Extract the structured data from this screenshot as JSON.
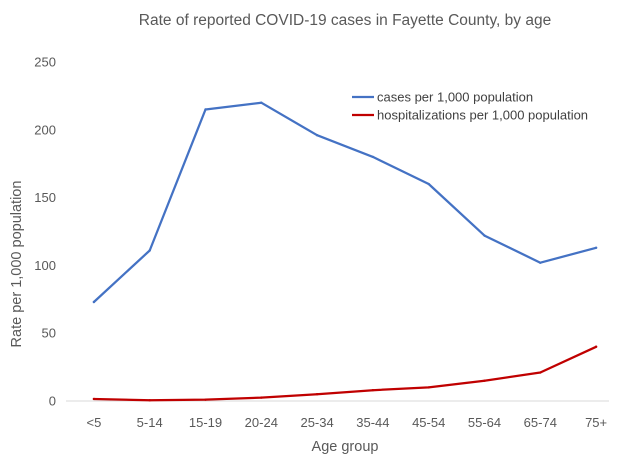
{
  "chart_data": {
    "type": "line",
    "title": "Rate of reported COVID-19 cases in Fayette County, by age",
    "xlabel": "Age group",
    "ylabel": "Rate per 1,000 population",
    "categories": [
      "<5",
      "5-14",
      "15-19",
      "20-24",
      "25-34",
      "35-44",
      "45-54",
      "55-64",
      "65-74",
      "75+"
    ],
    "ylim": [
      0,
      250
    ],
    "yticks": [
      "0",
      "50",
      "100",
      "150",
      "200",
      "250"
    ],
    "grid": false,
    "legend_position": "top-right",
    "series": [
      {
        "name": "cases per 1,000 population",
        "color": "#4472c4",
        "values": [
          73,
          111,
          215,
          220,
          196,
          180,
          160,
          122,
          102,
          113
        ]
      },
      {
        "name": "hospitalizations per 1,000 population",
        "color": "#c00000",
        "values": [
          1.5,
          0.5,
          1,
          2.5,
          5,
          8,
          10,
          15,
          21,
          40
        ]
      }
    ]
  }
}
